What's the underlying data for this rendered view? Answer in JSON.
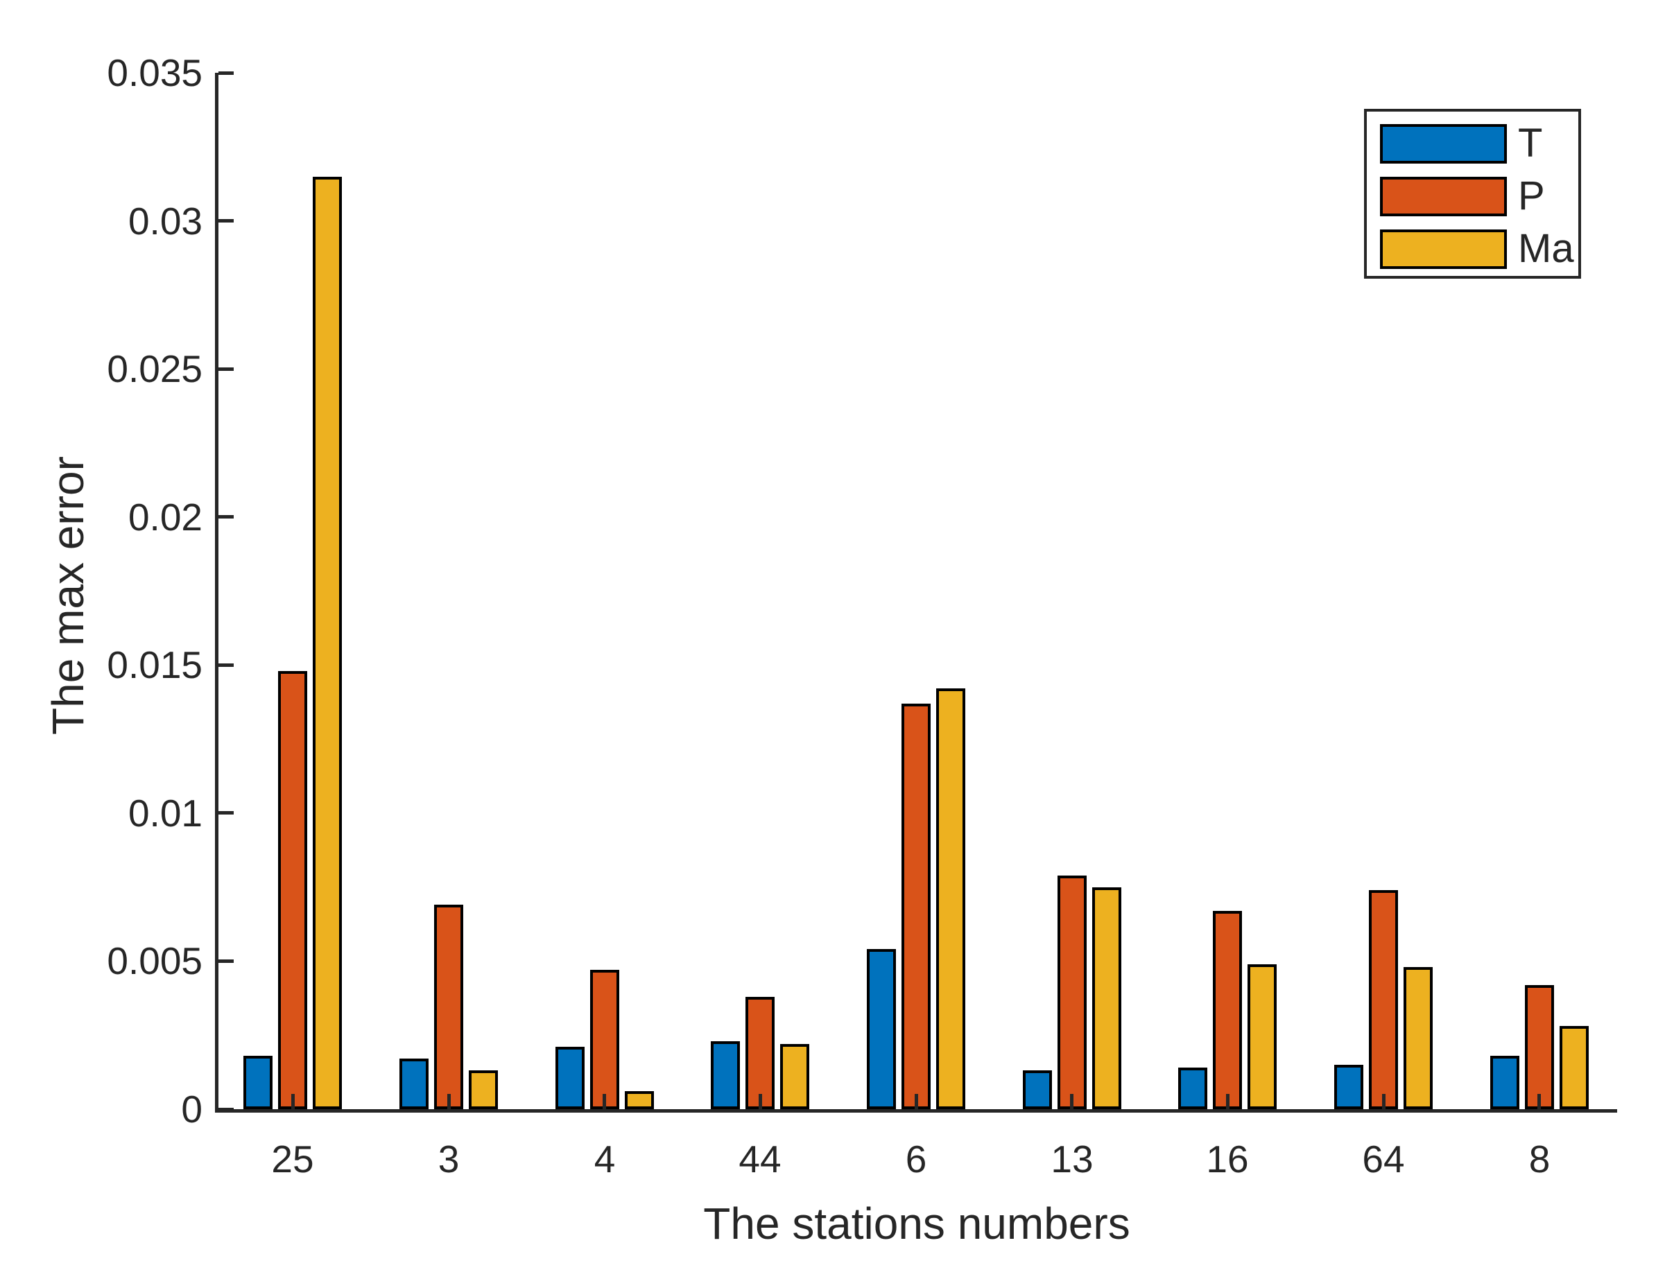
{
  "chart_data": {
    "type": "bar",
    "title": "",
    "xlabel": "The stations numbers",
    "ylabel": "The max error",
    "categories": [
      "25",
      "3",
      "4",
      "44",
      "6",
      "13",
      "16",
      "64",
      "8"
    ],
    "series": [
      {
        "name": "T",
        "color": "#0072BD",
        "values": [
          0.0018,
          0.0017,
          0.0021,
          0.0023,
          0.0054,
          0.0013,
          0.0014,
          0.0015,
          0.0018
        ]
      },
      {
        "name": "P",
        "color": "#D95319",
        "values": [
          0.0148,
          0.0069,
          0.0047,
          0.0038,
          0.0137,
          0.0079,
          0.0067,
          0.0074,
          0.0042
        ]
      },
      {
        "name": "Ma",
        "color": "#EDB120",
        "values": [
          0.0315,
          0.0013,
          0.0006,
          0.0022,
          0.0142,
          0.0075,
          0.0049,
          0.0048,
          0.0028
        ]
      }
    ],
    "ylim": [
      0,
      0.035
    ],
    "y_ticks": [
      0,
      0.005,
      0.01,
      0.015,
      0.02,
      0.025,
      0.03,
      0.035
    ],
    "y_tick_labels": [
      "0",
      "0.005",
      "0.01",
      "0.015",
      "0.02",
      "0.025",
      "0.03",
      "0.035"
    ],
    "grid": false,
    "legend_position": "top-right",
    "bar_edge_color": "#000000",
    "axis_color": "#262626"
  },
  "legend": {
    "items": [
      {
        "label": "T",
        "color": "#0072BD"
      },
      {
        "label": "P",
        "color": "#D95319"
      },
      {
        "label": "Ma",
        "color": "#EDB120"
      }
    ]
  }
}
